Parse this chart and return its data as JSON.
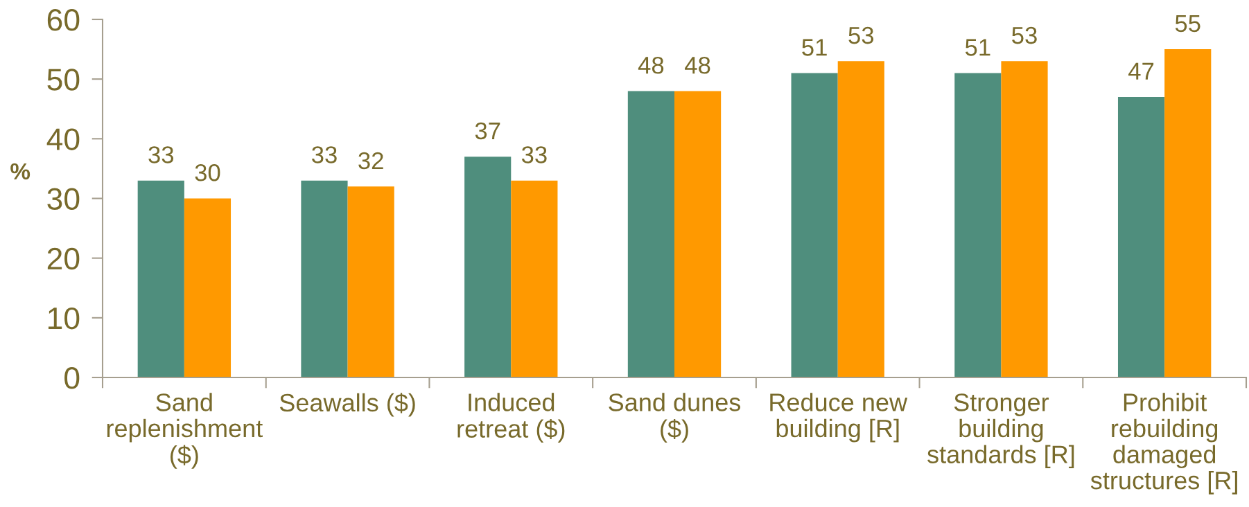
{
  "chart_data": {
    "type": "bar",
    "ylabel": "%",
    "categories": [
      "Sand\nreplenishment\n($)",
      "Seawalls ($)",
      "Induced\nretreat ($)",
      "Sand dunes\n($)",
      "Reduce new\nbuilding [R]",
      "Stronger\nbuilding\nstandards [R]",
      "Prohibit\nrebuilding\ndamaged\nstructures [R]"
    ],
    "series": [
      {
        "color": "#4f8e7d",
        "values": [
          33,
          33,
          37,
          48,
          51,
          51,
          47
        ]
      },
      {
        "color": "#ff9900",
        "values": [
          30,
          32,
          33,
          48,
          53,
          53,
          55
        ]
      }
    ],
    "ylim": [
      0,
      60
    ],
    "yticks": [
      0,
      10,
      20,
      30,
      40,
      50,
      60
    ],
    "data_labels": true
  }
}
